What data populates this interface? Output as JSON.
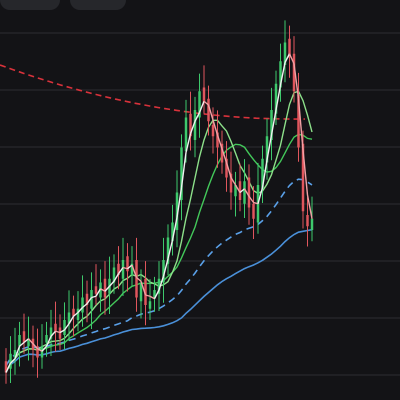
{
  "colors": {
    "background": "#131316",
    "grid": "#2d2e33",
    "up_candle": "#3ec96c",
    "down_candle": "#e0565d",
    "ma_fast": "#f2f2f2",
    "ma_fast_down": "#f2a0a4",
    "ma_mid": "#8de08a",
    "ma_slow": "#43c85a",
    "ma_long": "#4a90d9",
    "ma_long_dashed": "#5aa0e8",
    "ma_red_dashed": "#d9323b"
  },
  "toolbar": {
    "tabs": [
      {
        "icon": "blank-tab"
      },
      {
        "icon": "chevron-down-icon"
      }
    ]
  },
  "chart_data": {
    "type": "candlestick",
    "grid": true,
    "y_levels": [
      1,
      2,
      3,
      4,
      5,
      6,
      7
    ],
    "candles_close": [
      0.6,
      1.1,
      1.2,
      1.6,
      1.4,
      1.5,
      1.2,
      1.0,
      1.3,
      1.6,
      1.8,
      1.7,
      1.5,
      2.0,
      2.2,
      2.1,
      2.3,
      2.6,
      2.4,
      2.8,
      2.7,
      3.0,
      2.6,
      3.1,
      3.4,
      3.2,
      3.6,
      3.3,
      3.5,
      2.6,
      3.0,
      2.4,
      2.5,
      2.8,
      3.1,
      3.6,
      4.2,
      4.6,
      5.4,
      6.6,
      7.4,
      6.9,
      7.6,
      8.1,
      7.8,
      7.3,
      6.9,
      6.6,
      6.2,
      5.8,
      5.4,
      5.6,
      5.2,
      5.7,
      5.0,
      4.7,
      5.6,
      6.3,
      6.9,
      7.6,
      8.3,
      8.9,
      9.4,
      9.0,
      8.1,
      6.6,
      4.9,
      4.5,
      4.7
    ],
    "candles_open": [
      0.9,
      0.7,
      1.0,
      1.3,
      1.7,
      1.3,
      1.5,
      1.3,
      1.0,
      1.4,
      1.5,
      1.9,
      1.8,
      1.6,
      1.9,
      2.3,
      2.0,
      2.2,
      2.7,
      2.3,
      2.9,
      2.6,
      3.1,
      2.7,
      3.0,
      3.5,
      3.1,
      3.7,
      3.2,
      3.6,
      2.5,
      3.1,
      2.3,
      2.6,
      2.7,
      3.0,
      3.5,
      4.1,
      4.4,
      5.2,
      6.5,
      7.5,
      6.8,
      7.4,
      8.2,
      7.9,
      7.2,
      7.0,
      6.7,
      6.3,
      5.9,
      5.3,
      5.7,
      5.1,
      5.8,
      5.1,
      4.6,
      5.5,
      6.2,
      6.8,
      7.5,
      8.2,
      8.8,
      9.5,
      9.1,
      8.0,
      6.7,
      4.8,
      4.4
    ],
    "y_min": 0,
    "y_max": 10
  }
}
